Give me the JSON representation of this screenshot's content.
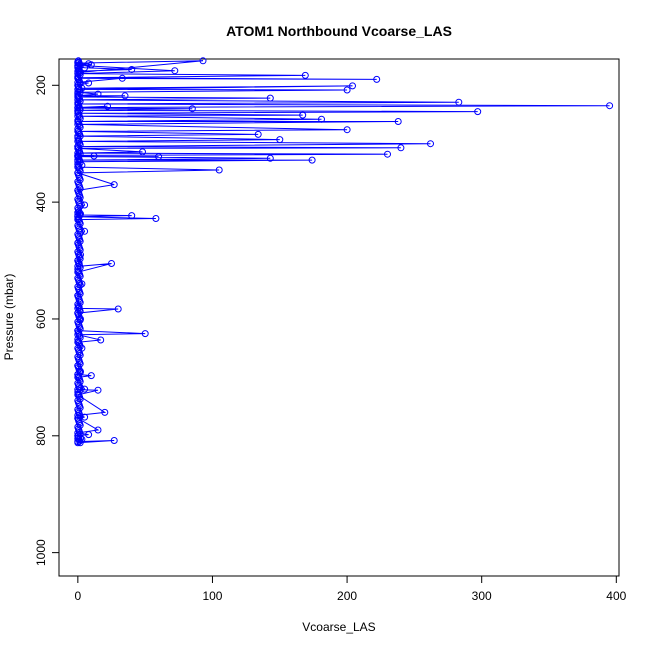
{
  "chart_data": {
    "type": "line",
    "title": "ATOM1 Northbound Vcoarse_LAS",
    "xlabel": "Vcoarse_LAS",
    "ylabel": "Pressure (mbar)",
    "xlim": [
      -14,
      402
    ],
    "ylim": [
      1040,
      155
    ],
    "y_reversed": true,
    "x_ticks": [
      0,
      100,
      200,
      300,
      400
    ],
    "y_ticks": [
      200,
      400,
      600,
      800,
      1000
    ],
    "grid": false,
    "legend": "none",
    "colors": {
      "series": "#0000ff",
      "axis": "#000000",
      "background": "#ffffff"
    },
    "marker": "open-circle",
    "series": [
      {
        "x": [
          0,
          10,
          0,
          5,
          40,
          0,
          2,
          93,
          0,
          8,
          0,
          72,
          0,
          169,
          0,
          222,
          0,
          33,
          0,
          8,
          0,
          3,
          204,
          0,
          200,
          0,
          15,
          0,
          35,
          0,
          143,
          0,
          283,
          0,
          395,
          0,
          22,
          0,
          85,
          0,
          297,
          0,
          167,
          0,
          181,
          0,
          238,
          0,
          200,
          0,
          134,
          0,
          150,
          0,
          262,
          0,
          240,
          0,
          48,
          0,
          230,
          0,
          12,
          0,
          60,
          0,
          143,
          0,
          174,
          0,
          3,
          0,
          105,
          0,
          27,
          0,
          5,
          0,
          2,
          0,
          40,
          0,
          58,
          0,
          5,
          0,
          2,
          0,
          1,
          0,
          25,
          0,
          3,
          0,
          1,
          0,
          30,
          0,
          2,
          0,
          50,
          0,
          17,
          0,
          3,
          0,
          2,
          0,
          10,
          0,
          5,
          0,
          15,
          0,
          20,
          0,
          5,
          0,
          15,
          0,
          8,
          0,
          2,
          0,
          3,
          0,
          27,
          0
        ],
        "y": [
          160,
          165,
          168,
          170,
          173,
          176,
          178,
          158,
          162,
          163,
          166,
          175,
          180,
          183,
          187,
          190,
          188,
          188,
          195,
          196,
          200,
          205,
          201,
          207,
          208,
          212,
          215,
          218,
          218,
          220,
          222,
          225,
          229,
          232,
          235,
          238,
          236,
          239,
          240,
          243,
          245,
          248,
          251,
          253,
          258,
          262,
          262,
          267,
          276,
          279,
          284,
          287,
          293,
          296,
          300,
          305,
          307,
          308,
          314,
          316,
          318,
          320,
          321,
          322,
          322,
          322,
          325,
          328,
          328,
          331,
          337,
          340,
          345,
          350,
          370,
          380,
          405,
          418,
          420,
          422,
          423,
          425,
          428,
          430,
          450,
          470,
          490,
          500,
          505,
          510,
          505,
          520,
          540,
          560,
          580,
          582,
          583,
          590,
          600,
          620,
          625,
          627,
          636,
          640,
          650,
          680,
          690,
          695,
          697,
          700,
          720,
          721,
          722,
          730,
          760,
          765,
          768,
          770,
          790,
          795,
          798,
          800,
          805,
          805,
          806,
          810,
          808,
          812
        ]
      }
    ]
  }
}
